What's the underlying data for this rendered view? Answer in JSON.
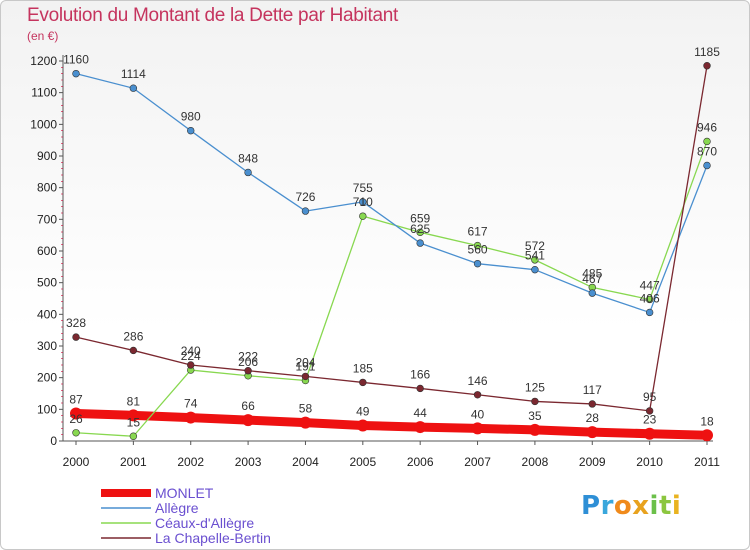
{
  "chart_data": {
    "type": "line",
    "title": "Evolution du Montant de la Dette par Habitant",
    "subtitle": "(en €)",
    "x": [
      "2000",
      "2001",
      "2002",
      "2003",
      "2004",
      "2005",
      "2006",
      "2007",
      "2008",
      "2009",
      "2010",
      "2011"
    ],
    "ylim": [
      0,
      1200
    ],
    "yticks": [
      0,
      100,
      200,
      300,
      400,
      500,
      600,
      700,
      800,
      900,
      1000,
      1100,
      1200
    ],
    "grid": false,
    "legend_position": "bottom-left",
    "series": [
      {
        "name": "MONLET",
        "color": "#ee1111",
        "width": "thick",
        "values": [
          87,
          81,
          74,
          66,
          58,
          49,
          44,
          40,
          35,
          28,
          23,
          18
        ]
      },
      {
        "name": "Allègre",
        "color": "#4a8fcf",
        "width": "thin",
        "values": [
          1160,
          1114,
          980,
          848,
          726,
          755,
          625,
          560,
          541,
          467,
          406,
          870
        ]
      },
      {
        "name": "Céaux-d'Allègre",
        "color": "#88d850",
        "width": "thin",
        "values": [
          26,
          15,
          224,
          206,
          191,
          710,
          659,
          617,
          572,
          485,
          447,
          946
        ]
      },
      {
        "name": "La Chapelle-Bertin",
        "color": "#7b2830",
        "width": "thin",
        "values": [
          328,
          286,
          240,
          222,
          204,
          185,
          166,
          146,
          125,
          117,
          95,
          1185
        ]
      }
    ]
  },
  "logo": {
    "letters": [
      "P",
      "r",
      "o",
      "x",
      "i",
      "t",
      "i"
    ],
    "colors": [
      "#2e8fd6",
      "#3aa7dc",
      "#f08a1c",
      "#e8a21e",
      "#6cc04a",
      "#8cc63f",
      "#e9b320"
    ]
  }
}
